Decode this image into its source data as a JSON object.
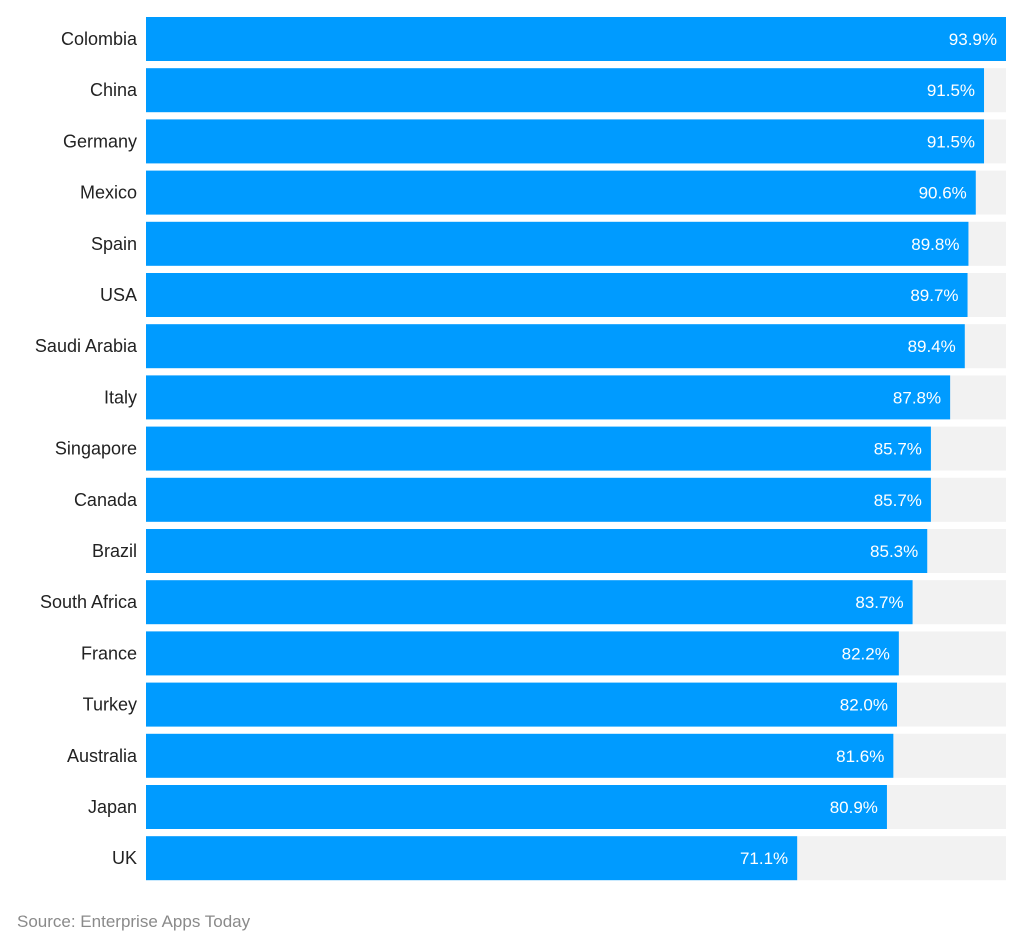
{
  "chart_data": {
    "type": "bar",
    "orientation": "horizontal",
    "categories": [
      "Colombia",
      "China",
      "Germany",
      "Mexico",
      "Spain",
      "USA",
      "Saudi Arabia",
      "Italy",
      "Singapore",
      "Canada",
      "Brazil",
      "South Africa",
      "France",
      "Turkey",
      "Australia",
      "Japan",
      "UK"
    ],
    "values": [
      93.9,
      91.5,
      91.5,
      90.6,
      89.8,
      89.7,
      89.4,
      87.8,
      85.7,
      85.7,
      85.3,
      83.7,
      82.2,
      82.0,
      81.6,
      80.9,
      71.1
    ],
    "value_labels": [
      "93.9%",
      "91.5%",
      "91.5%",
      "90.6%",
      "89.8%",
      "89.7%",
      "89.4%",
      "87.8%",
      "85.7%",
      "85.7%",
      "85.3%",
      "83.7%",
      "82.2%",
      "82.0%",
      "81.6%",
      "80.9%",
      "71.1%"
    ],
    "xlim": [
      0,
      93.9
    ],
    "grid": false,
    "legend": "none",
    "colors": {
      "bar": "#009bff",
      "track": "#f2f2f2",
      "label": "#222222",
      "value_label": "#ffffff"
    }
  },
  "source": "Source: Enterprise Apps Today"
}
